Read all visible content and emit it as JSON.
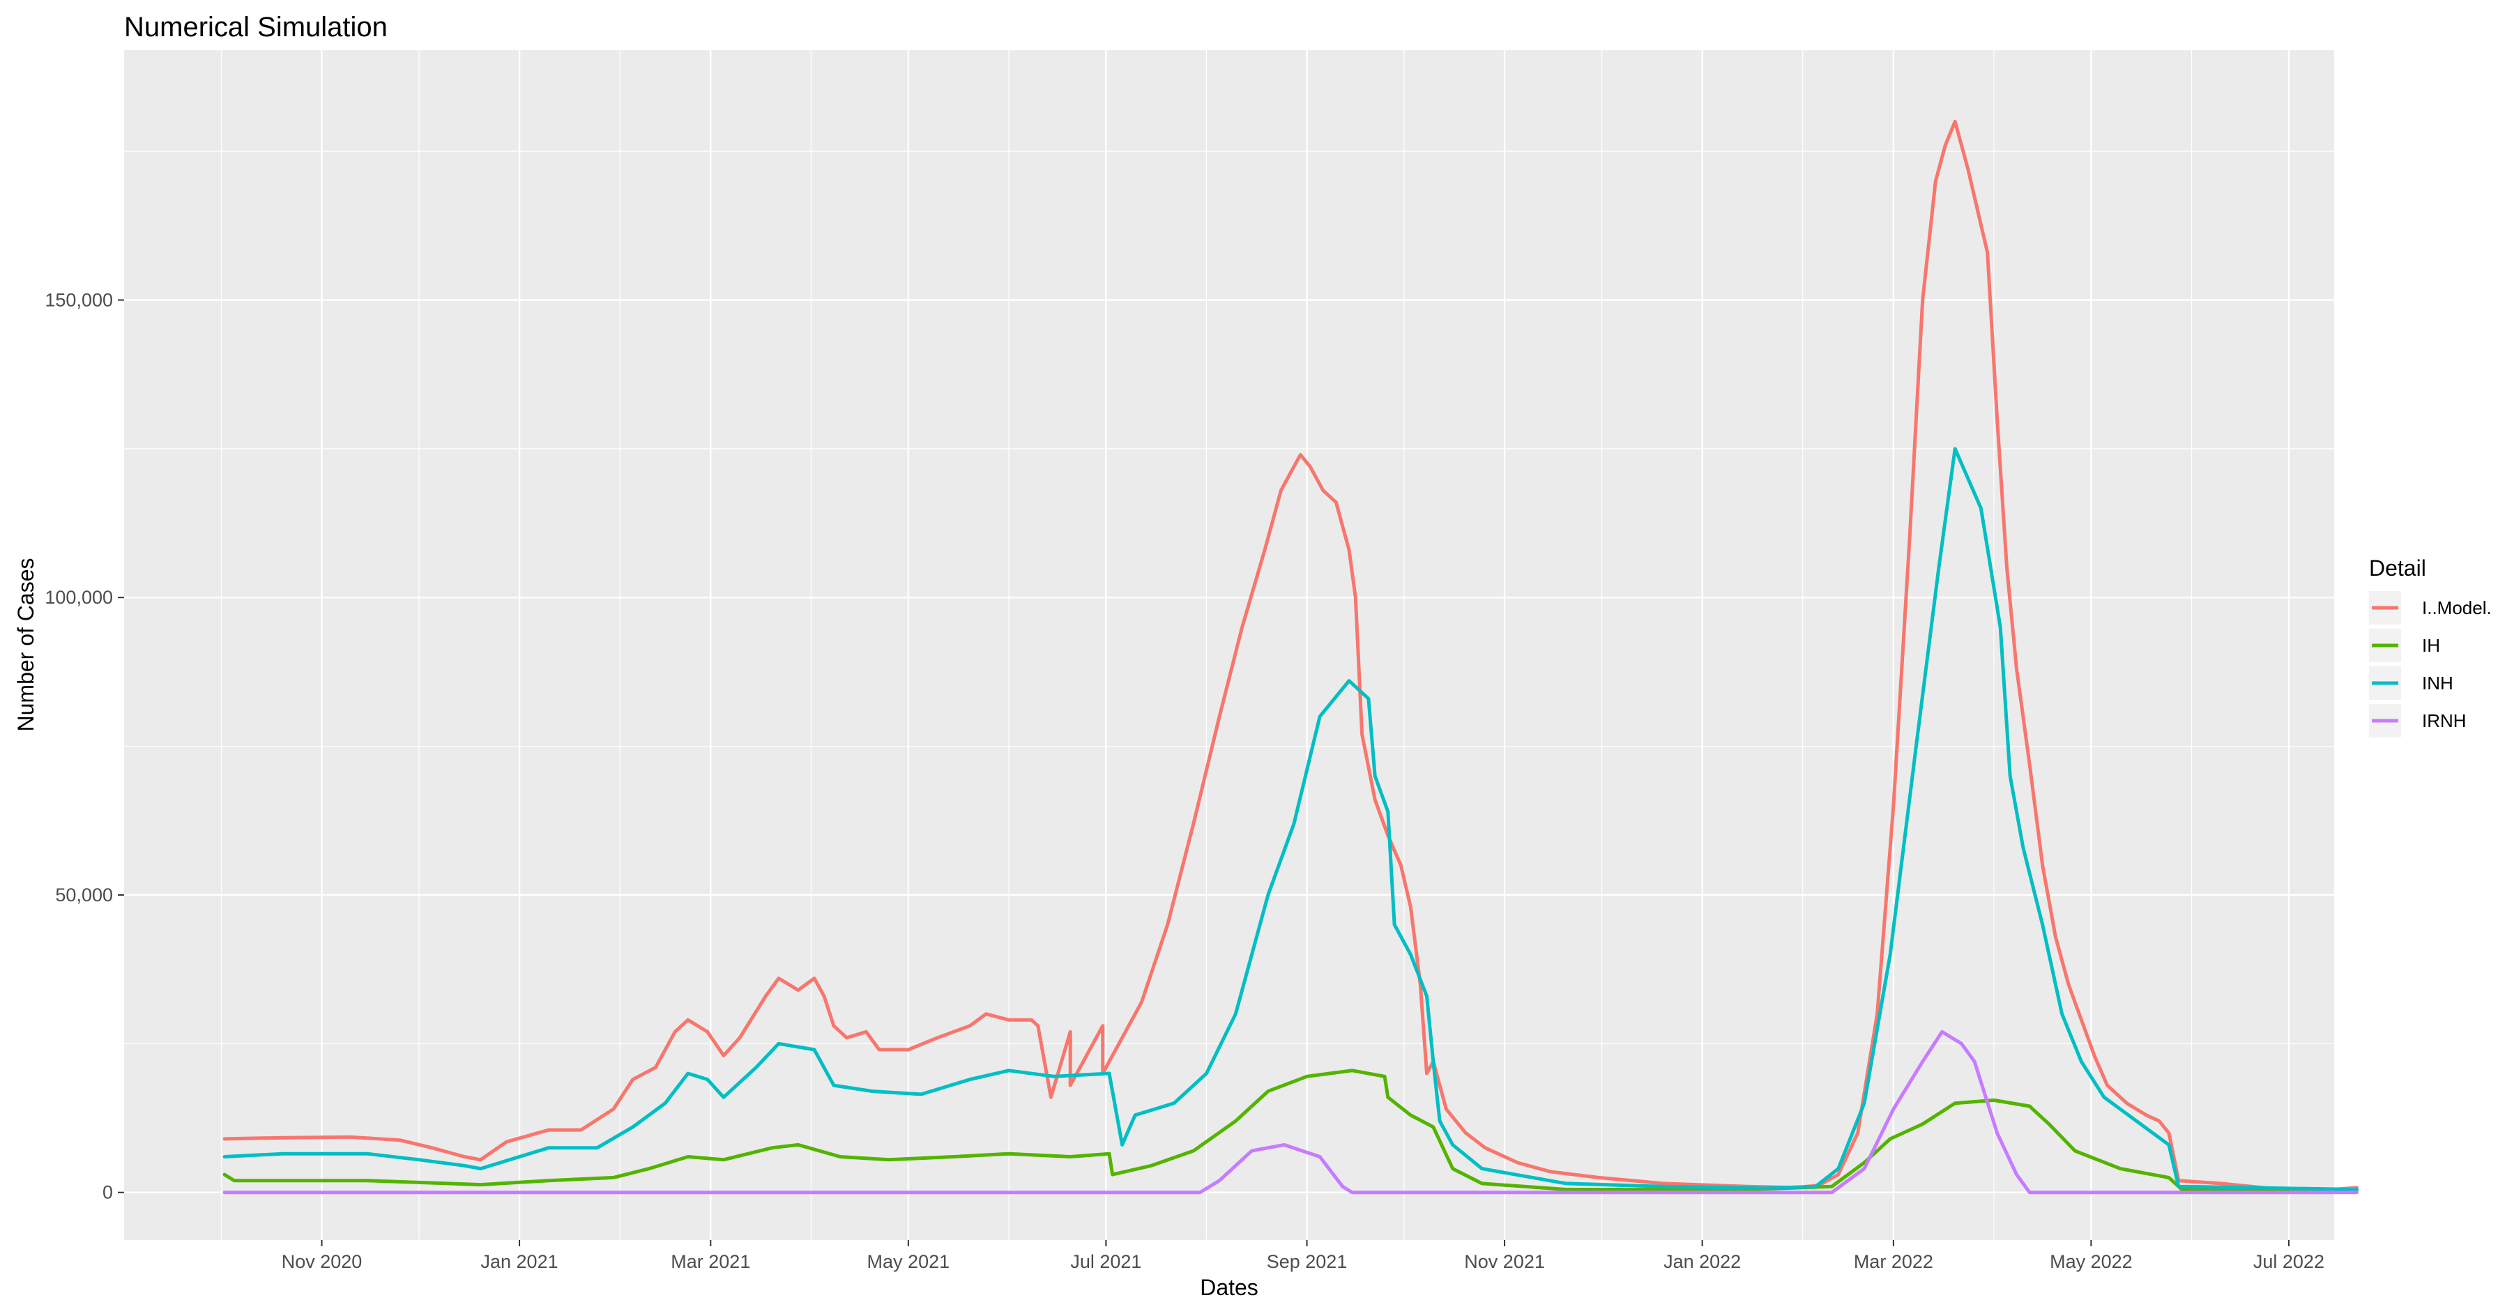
{
  "chart_data": {
    "type": "line",
    "title": "Numerical Simulation",
    "xlabel": "Dates",
    "ylabel": "Number of Cases",
    "x_range": [
      "2020-09-01",
      "2022-07-15"
    ],
    "ylim": [
      -8000,
      192000
    ],
    "grid": true,
    "x_ticks": [
      {
        "date": "2020-11-01",
        "label": "Nov 2020"
      },
      {
        "date": "2021-01-01",
        "label": "Jan 2021"
      },
      {
        "date": "2021-03-01",
        "label": "Mar 2021"
      },
      {
        "date": "2021-05-01",
        "label": "May 2021"
      },
      {
        "date": "2021-07-01",
        "label": "Jul 2021"
      },
      {
        "date": "2021-09-01",
        "label": "Sep 2021"
      },
      {
        "date": "2021-11-01",
        "label": "Nov 2021"
      },
      {
        "date": "2022-01-01",
        "label": "Jan 2022"
      },
      {
        "date": "2022-03-01",
        "label": "Mar 2022"
      },
      {
        "date": "2022-05-01",
        "label": "May 2022"
      },
      {
        "date": "2022-07-01",
        "label": "Jul 2022"
      }
    ],
    "y_ticks": [
      {
        "value": 0,
        "label": "0"
      },
      {
        "value": 50000,
        "label": "50,000"
      },
      {
        "value": 100000,
        "label": "100,000"
      },
      {
        "value": 150000,
        "label": "150,000"
      }
    ],
    "legend": {
      "title": "Detail",
      "position": "right"
    },
    "series": [
      {
        "name": "I..Model.",
        "color": "#F8766D",
        "points": [
          [
            "2020-10-02",
            9000
          ],
          [
            "2020-10-20",
            9200
          ],
          [
            "2020-11-10",
            9300
          ],
          [
            "2020-11-25",
            8800
          ],
          [
            "2020-12-05",
            7500
          ],
          [
            "2020-12-15",
            6000
          ],
          [
            "2020-12-20",
            5500
          ],
          [
            "2020-12-28",
            8500
          ],
          [
            "2021-01-10",
            10500
          ],
          [
            "2021-01-20",
            10500
          ],
          [
            "2021-01-30",
            14000
          ],
          [
            "2021-02-05",
            19000
          ],
          [
            "2021-02-12",
            21000
          ],
          [
            "2021-02-18",
            27000
          ],
          [
            "2021-02-22",
            29000
          ],
          [
            "2021-02-28",
            27000
          ],
          [
            "2021-03-05",
            23000
          ],
          [
            "2021-03-10",
            26000
          ],
          [
            "2021-03-18",
            33000
          ],
          [
            "2021-03-22",
            36000
          ],
          [
            "2021-03-28",
            34000
          ],
          [
            "2021-04-02",
            36000
          ],
          [
            "2021-04-05",
            33000
          ],
          [
            "2021-04-08",
            28000
          ],
          [
            "2021-04-12",
            26000
          ],
          [
            "2021-04-18",
            27000
          ],
          [
            "2021-04-22",
            24000
          ],
          [
            "2021-05-01",
            24000
          ],
          [
            "2021-05-10",
            26000
          ],
          [
            "2021-05-20",
            28000
          ],
          [
            "2021-05-25",
            30000
          ],
          [
            "2021-06-01",
            29000
          ],
          [
            "2021-06-10",
            28000
          ],
          [
            "2021-06-20",
            27000
          ],
          [
            "2021-06-30",
            28000
          ],
          [
            "2021-06-08",
            29000
          ],
          [
            "2021-06-12",
            22000
          ],
          [
            "2021-06-14",
            16000
          ],
          [
            "2021-06-20",
            18000
          ],
          [
            "2021-06-30",
            20000
          ],
          [
            "2021-07-05",
            25000
          ],
          [
            "2021-07-12",
            32000
          ],
          [
            "2021-07-20",
            45000
          ],
          [
            "2021-07-28",
            62000
          ],
          [
            "2021-08-05",
            80000
          ],
          [
            "2021-08-12",
            95000
          ],
          [
            "2021-08-19",
            108000
          ],
          [
            "2021-08-24",
            118000
          ],
          [
            "2021-08-27",
            121000
          ],
          [
            "2021-08-30",
            124000
          ],
          [
            "2021-09-02",
            122000
          ],
          [
            "2021-09-06",
            118000
          ],
          [
            "2021-09-10",
            116000
          ],
          [
            "2021-09-14",
            108000
          ],
          [
            "2021-09-16",
            100000
          ],
          [
            "2021-09-18",
            77000
          ],
          [
            "2021-09-22",
            66000
          ],
          [
            "2021-09-26",
            60000
          ],
          [
            "2021-09-30",
            55000
          ],
          [
            "2021-10-03",
            48000
          ],
          [
            "2021-10-06",
            35000
          ],
          [
            "2021-10-08",
            20000
          ],
          [
            "2021-10-10",
            22000
          ],
          [
            "2021-10-14",
            14000
          ],
          [
            "2021-10-20",
            10000
          ],
          [
            "2021-10-26",
            7500
          ],
          [
            "2021-11-05",
            5000
          ],
          [
            "2021-11-15",
            3500
          ],
          [
            "2021-11-30",
            2500
          ],
          [
            "2021-12-20",
            1500
          ],
          [
            "2022-01-15",
            1000
          ],
          [
            "2022-01-30",
            800
          ],
          [
            "2022-02-06",
            1200
          ],
          [
            "2022-02-12",
            3000
          ],
          [
            "2022-02-18",
            10000
          ],
          [
            "2022-02-24",
            30000
          ],
          [
            "2022-03-01",
            65000
          ],
          [
            "2022-03-06",
            110000
          ],
          [
            "2022-03-10",
            150000
          ],
          [
            "2022-03-14",
            170000
          ],
          [
            "2022-03-17",
            176000
          ],
          [
            "2022-03-20",
            180000
          ],
          [
            "2022-03-24",
            172000
          ],
          [
            "2022-03-27",
            165000
          ],
          [
            "2022-03-30",
            158000
          ],
          [
            "2022-04-02",
            130000
          ],
          [
            "2022-04-05",
            105000
          ],
          [
            "2022-04-08",
            88000
          ],
          [
            "2022-04-12",
            72000
          ],
          [
            "2022-04-16",
            55000
          ],
          [
            "2022-04-20",
            43000
          ],
          [
            "2022-04-24",
            35000
          ],
          [
            "2022-04-28",
            29000
          ],
          [
            "2022-05-02",
            23000
          ],
          [
            "2022-05-06",
            18000
          ],
          [
            "2022-05-12",
            15000
          ],
          [
            "2022-05-18",
            13000
          ],
          [
            "2022-05-22",
            12000
          ],
          [
            "2022-05-25",
            10000
          ],
          [
            "2022-05-28",
            2000
          ],
          [
            "2022-06-10",
            1500
          ],
          [
            "2022-06-25",
            700
          ],
          [
            "2022-07-15",
            500
          ],
          [
            "2022-07-22",
            800
          ]
        ]
      },
      {
        "name": "IH",
        "color": "#53B400",
        "points": [
          [
            "2020-10-02",
            3000
          ],
          [
            "2020-10-05",
            2000
          ],
          [
            "2020-10-20",
            2000
          ],
          [
            "2020-11-15",
            2000
          ],
          [
            "2020-12-10",
            1500
          ],
          [
            "2020-12-20",
            1300
          ],
          [
            "2021-01-10",
            2000
          ],
          [
            "2021-01-30",
            2500
          ],
          [
            "2021-02-10",
            4000
          ],
          [
            "2021-02-22",
            6000
          ],
          [
            "2021-03-05",
            5500
          ],
          [
            "2021-03-20",
            7500
          ],
          [
            "2021-03-28",
            8000
          ],
          [
            "2021-04-10",
            6000
          ],
          [
            "2021-04-25",
            5500
          ],
          [
            "2021-05-15",
            6000
          ],
          [
            "2021-06-01",
            6500
          ],
          [
            "2021-06-20",
            6000
          ],
          [
            "2021-07-02",
            6500
          ],
          [
            "2021-07-03",
            3000
          ],
          [
            "2021-07-15",
            4500
          ],
          [
            "2021-07-28",
            7000
          ],
          [
            "2021-08-10",
            12000
          ],
          [
            "2021-08-20",
            17000
          ],
          [
            "2021-09-01",
            19500
          ],
          [
            "2021-09-15",
            20500
          ],
          [
            "2021-09-25",
            19500
          ],
          [
            "2021-09-26",
            16000
          ],
          [
            "2021-10-03",
            13000
          ],
          [
            "2021-10-10",
            11000
          ],
          [
            "2021-10-16",
            4000
          ],
          [
            "2021-10-25",
            1500
          ],
          [
            "2021-11-20",
            500
          ],
          [
            "2022-01-15",
            500
          ],
          [
            "2022-02-10",
            1000
          ],
          [
            "2022-02-20",
            5000
          ],
          [
            "2022-02-28",
            9000
          ],
          [
            "2022-03-10",
            11500
          ],
          [
            "2022-03-20",
            15000
          ],
          [
            "2022-04-01",
            15500
          ],
          [
            "2022-04-12",
            14500
          ],
          [
            "2022-04-18",
            11500
          ],
          [
            "2022-04-26",
            7000
          ],
          [
            "2022-05-10",
            4000
          ],
          [
            "2022-05-25",
            2500
          ],
          [
            "2022-05-29",
            500
          ],
          [
            "2022-07-22",
            300
          ]
        ]
      },
      {
        "name": "INH",
        "color": "#00BFC4",
        "points": [
          [
            "2020-10-02",
            6000
          ],
          [
            "2020-10-20",
            6500
          ],
          [
            "2020-11-15",
            6500
          ],
          [
            "2020-12-01",
            5500
          ],
          [
            "2020-12-15",
            4500
          ],
          [
            "2020-12-20",
            4000
          ],
          [
            "2021-01-10",
            7500
          ],
          [
            "2021-01-25",
            7500
          ],
          [
            "2021-02-05",
            11000
          ],
          [
            "2021-02-15",
            15000
          ],
          [
            "2021-02-22",
            20000
          ],
          [
            "2021-02-28",
            19000
          ],
          [
            "2021-03-05",
            16000
          ],
          [
            "2021-03-15",
            21000
          ],
          [
            "2021-03-22",
            25000
          ],
          [
            "2021-04-02",
            24000
          ],
          [
            "2021-04-08",
            18000
          ],
          [
            "2021-04-20",
            17000
          ],
          [
            "2021-05-05",
            16500
          ],
          [
            "2021-05-20",
            19000
          ],
          [
            "2021-06-01",
            20500
          ],
          [
            "2021-06-15",
            19500
          ],
          [
            "2021-07-02",
            20000
          ],
          [
            "2021-07-06",
            8000
          ],
          [
            "2021-07-10",
            13000
          ],
          [
            "2021-07-22",
            15000
          ],
          [
            "2021-08-01",
            20000
          ],
          [
            "2021-08-10",
            30000
          ],
          [
            "2021-08-20",
            50000
          ],
          [
            "2021-08-28",
            62000
          ],
          [
            "2021-09-05",
            80000
          ],
          [
            "2021-09-14",
            86000
          ],
          [
            "2021-09-20",
            83000
          ],
          [
            "2021-09-22",
            70000
          ],
          [
            "2021-09-26",
            64000
          ],
          [
            "2021-09-28",
            45000
          ],
          [
            "2021-10-03",
            40000
          ],
          [
            "2021-10-08",
            33000
          ],
          [
            "2021-10-10",
            22000
          ],
          [
            "2021-10-12",
            12000
          ],
          [
            "2021-10-16",
            8000
          ],
          [
            "2021-10-25",
            4000
          ],
          [
            "2021-11-20",
            1500
          ],
          [
            "2021-12-20",
            1000
          ],
          [
            "2022-01-20",
            700
          ],
          [
            "2022-02-05",
            1000
          ],
          [
            "2022-02-12",
            4000
          ],
          [
            "2022-02-20",
            15000
          ],
          [
            "2022-02-28",
            40000
          ],
          [
            "2022-03-08",
            75000
          ],
          [
            "2022-03-15",
            105000
          ],
          [
            "2022-03-20",
            125000
          ],
          [
            "2022-03-24",
            120000
          ],
          [
            "2022-03-28",
            115000
          ],
          [
            "2022-04-03",
            95000
          ],
          [
            "2022-04-06",
            70000
          ],
          [
            "2022-04-10",
            58000
          ],
          [
            "2022-04-16",
            45000
          ],
          [
            "2022-04-22",
            30000
          ],
          [
            "2022-04-28",
            22000
          ],
          [
            "2022-05-05",
            16000
          ],
          [
            "2022-05-15",
            12000
          ],
          [
            "2022-05-25",
            8000
          ],
          [
            "2022-05-28",
            1000
          ],
          [
            "2022-07-22",
            500
          ]
        ]
      },
      {
        "name": "IRNH",
        "color": "#C77CFF",
        "points": [
          [
            "2020-10-02",
            0
          ],
          [
            "2021-07-30",
            0
          ],
          [
            "2021-08-05",
            2000
          ],
          [
            "2021-08-15",
            7000
          ],
          [
            "2021-08-25",
            8000
          ],
          [
            "2021-09-05",
            6000
          ],
          [
            "2021-09-12",
            1000
          ],
          [
            "2021-09-15",
            0
          ],
          [
            "2022-02-10",
            0
          ],
          [
            "2022-02-20",
            4000
          ],
          [
            "2022-03-01",
            14000
          ],
          [
            "2022-03-10",
            22000
          ],
          [
            "2022-03-16",
            27000
          ],
          [
            "2022-03-22",
            25000
          ],
          [
            "2022-03-26",
            22000
          ],
          [
            "2022-04-02",
            10000
          ],
          [
            "2022-04-08",
            3000
          ],
          [
            "2022-04-12",
            0
          ],
          [
            "2022-07-22",
            0
          ]
        ]
      }
    ]
  }
}
